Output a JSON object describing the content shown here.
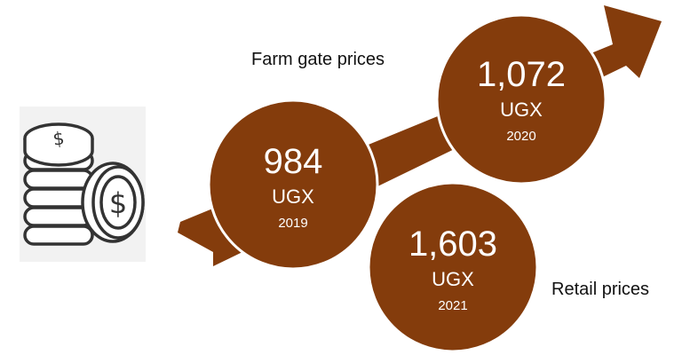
{
  "labels": {
    "farm_gate": "Farm gate prices",
    "retail": "Retail prices"
  },
  "points": [
    {
      "value": "984",
      "unit": "UGX",
      "year": "2019"
    },
    {
      "value": "1,072",
      "unit": "UGX",
      "year": "2020"
    },
    {
      "value": "1,603",
      "unit": "UGX",
      "year": "2021"
    }
  ],
  "colors": {
    "circle_fill": "#843c0c",
    "arrow_fill": "#843c0c",
    "circle_stroke": "#ffffff",
    "icon_panel": "#f2f2f2",
    "icon_stroke": "#333333"
  },
  "icon": "coin-stack-icon"
}
